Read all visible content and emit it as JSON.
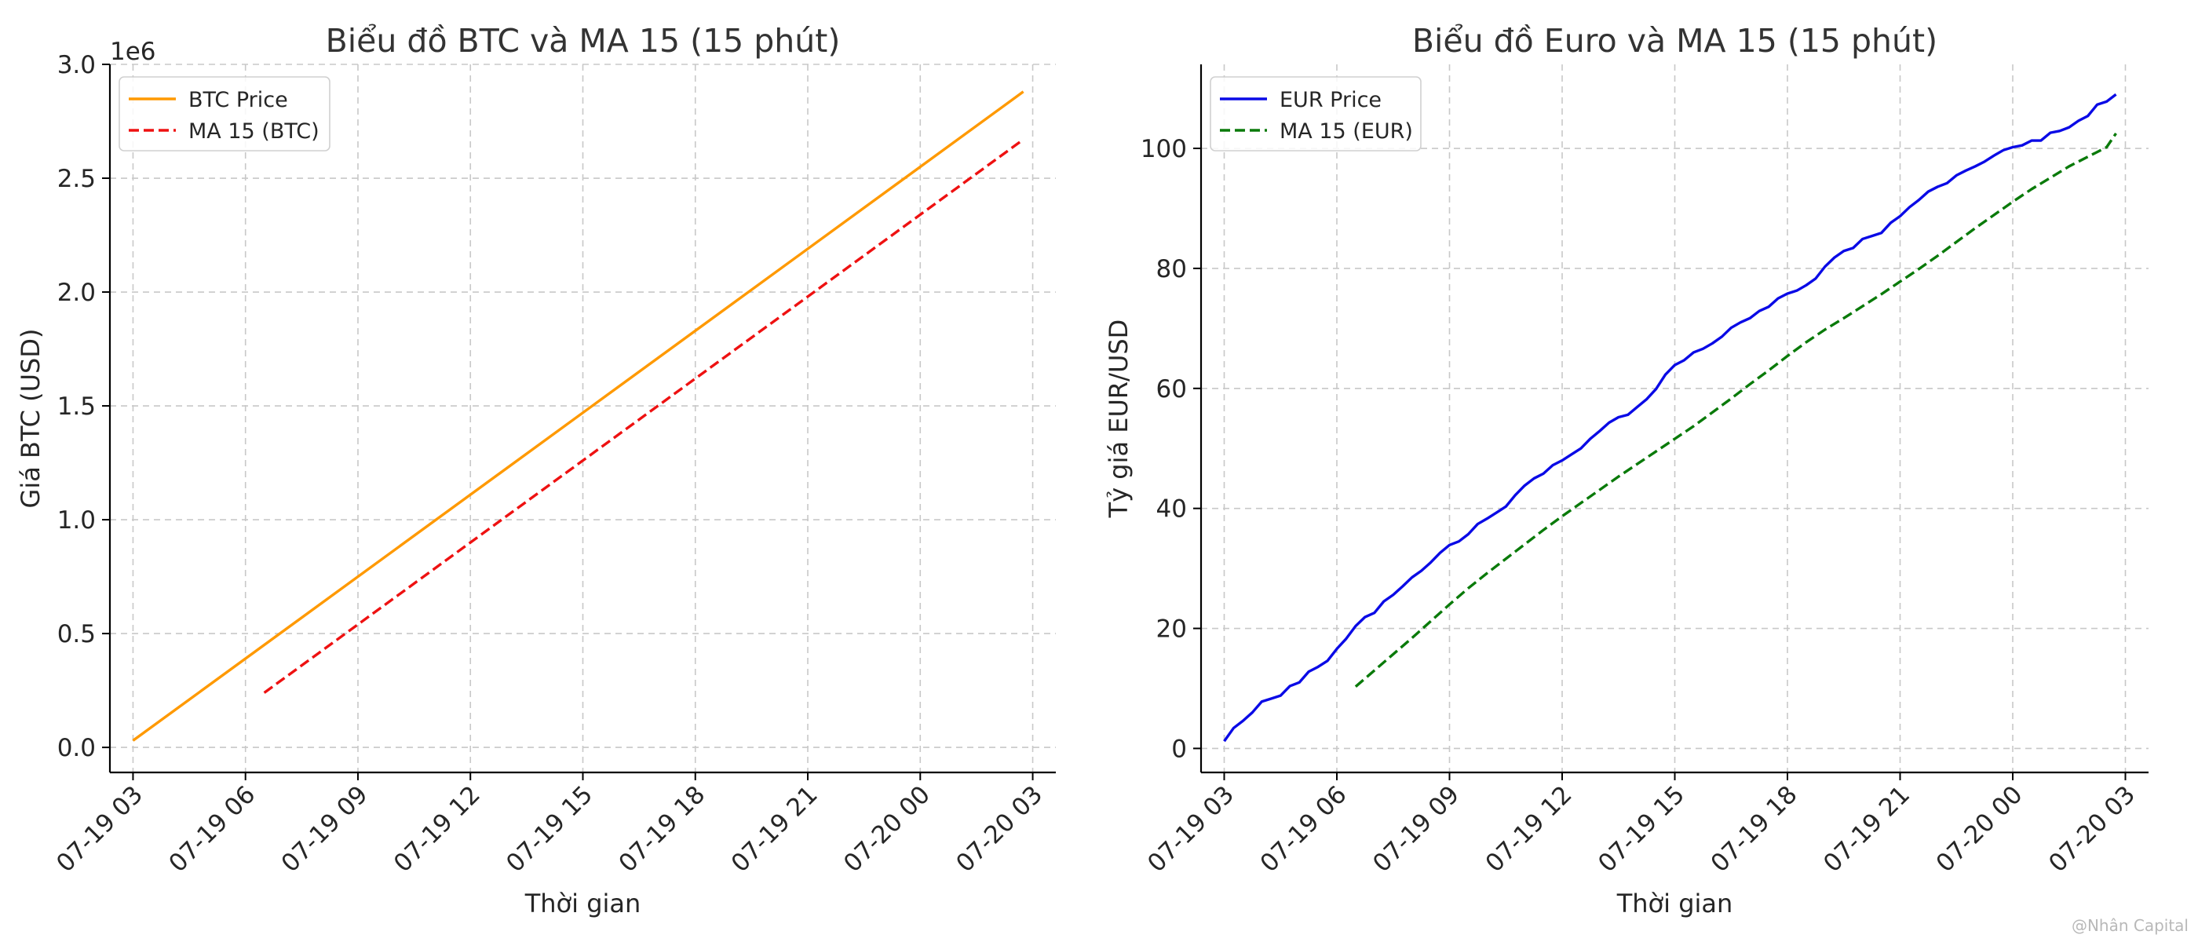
{
  "chart_data": [
    {
      "type": "line",
      "title": "Biểu đồ BTC và MA 15 (15 phút)",
      "xlabel": "Thời gian",
      "ylabel": "Giá BTC (USD)",
      "y_offset_label": "1e6",
      "y_scale": 1000000,
      "xlim": [
        "2024-07-19T02:23",
        "2024-07-20T03:37"
      ],
      "ylim": [
        -110000,
        3000000
      ],
      "x_ticks": [
        {
          "value": "2024-07-19T03:00",
          "label": "07-19 03"
        },
        {
          "value": "2024-07-19T06:00",
          "label": "07-19 06"
        },
        {
          "value": "2024-07-19T09:00",
          "label": "07-19 09"
        },
        {
          "value": "2024-07-19T12:00",
          "label": "07-19 12"
        },
        {
          "value": "2024-07-19T15:00",
          "label": "07-19 15"
        },
        {
          "value": "2024-07-19T18:00",
          "label": "07-19 18"
        },
        {
          "value": "2024-07-19T21:00",
          "label": "07-19 21"
        },
        {
          "value": "2024-07-20T00:00",
          "label": "07-20 00"
        },
        {
          "value": "2024-07-20T03:00",
          "label": "07-20 03"
        }
      ],
      "y_ticks": [
        {
          "value": 0,
          "label": "0.0"
        },
        {
          "value": 500000,
          "label": "0.5"
        },
        {
          "value": 1000000,
          "label": "1.0"
        },
        {
          "value": 1500000,
          "label": "1.5"
        },
        {
          "value": 2000000,
          "label": "2.0"
        },
        {
          "value": 2500000,
          "label": "2.5"
        },
        {
          "value": 3000000,
          "label": "3.0"
        }
      ],
      "grid": true,
      "legend_position": "top-left",
      "series": [
        {
          "name": "BTC Price",
          "color": "#ff9900",
          "dash": "solid",
          "points": [
            [
              "2024-07-19T03:00",
              30000
            ],
            [
              "2024-07-20T02:45",
              2880000
            ]
          ]
        },
        {
          "name": "MA 15 (BTC)",
          "color": "#ee1111",
          "dash": "dashed",
          "points": [
            [
              "2024-07-19T06:30",
              240000
            ],
            [
              "2024-07-20T02:45",
              2670000
            ]
          ]
        }
      ]
    },
    {
      "type": "line",
      "title": "Biểu đồ Euro và MA 15 (15 phút)",
      "xlabel": "Thời gian",
      "ylabel": "Tỷ giá EUR/USD",
      "xlim": [
        "2024-07-19T02:23",
        "2024-07-20T03:37"
      ],
      "ylim": [
        -4,
        114
      ],
      "x_ticks": [
        {
          "value": "2024-07-19T03:00",
          "label": "07-19 03"
        },
        {
          "value": "2024-07-19T06:00",
          "label": "07-19 06"
        },
        {
          "value": "2024-07-19T09:00",
          "label": "07-19 09"
        },
        {
          "value": "2024-07-19T12:00",
          "label": "07-19 12"
        },
        {
          "value": "2024-07-19T15:00",
          "label": "07-19 15"
        },
        {
          "value": "2024-07-19T18:00",
          "label": "07-19 18"
        },
        {
          "value": "2024-07-19T21:00",
          "label": "07-19 21"
        },
        {
          "value": "2024-07-20T00:00",
          "label": "07-20 00"
        },
        {
          "value": "2024-07-20T03:00",
          "label": "07-20 03"
        }
      ],
      "y_ticks": [
        {
          "value": 0,
          "label": "0"
        },
        {
          "value": 20,
          "label": "20"
        },
        {
          "value": 40,
          "label": "40"
        },
        {
          "value": 60,
          "label": "60"
        },
        {
          "value": 80,
          "label": "80"
        },
        {
          "value": 100,
          "label": "100"
        }
      ],
      "grid": true,
      "legend_position": "top-left",
      "series": [
        {
          "name": "EUR Price",
          "color": "#0a0ae6",
          "dash": "solid",
          "points": [
            [
              "2024-07-19T03:00",
              1.2
            ],
            [
              "2024-07-19T03:15",
              3.4
            ],
            [
              "2024-07-19T03:30",
              4.6
            ],
            [
              "2024-07-19T03:45",
              6.0
            ],
            [
              "2024-07-19T04:00",
              7.8
            ],
            [
              "2024-07-19T04:15",
              8.3
            ],
            [
              "2024-07-19T04:30",
              8.8
            ],
            [
              "2024-07-19T04:45",
              10.4
            ],
            [
              "2024-07-19T05:00",
              11.0
            ],
            [
              "2024-07-19T05:15",
              12.8
            ],
            [
              "2024-07-19T05:30",
              13.6
            ],
            [
              "2024-07-19T05:45",
              14.6
            ],
            [
              "2024-07-19T06:00",
              16.6
            ],
            [
              "2024-07-19T06:15",
              18.3
            ],
            [
              "2024-07-19T06:30",
              20.4
            ],
            [
              "2024-07-19T06:45",
              21.9
            ],
            [
              "2024-07-19T07:00",
              22.6
            ],
            [
              "2024-07-19T07:15",
              24.5
            ],
            [
              "2024-07-19T07:30",
              25.6
            ],
            [
              "2024-07-19T07:45",
              27.0
            ],
            [
              "2024-07-19T08:00",
              28.5
            ],
            [
              "2024-07-19T08:15",
              29.6
            ],
            [
              "2024-07-19T08:30",
              31.0
            ],
            [
              "2024-07-19T08:45",
              32.6
            ],
            [
              "2024-07-19T09:00",
              33.9
            ],
            [
              "2024-07-19T09:15",
              34.5
            ],
            [
              "2024-07-19T09:30",
              35.7
            ],
            [
              "2024-07-19T09:45",
              37.4
            ],
            [
              "2024-07-19T10:00",
              38.3
            ],
            [
              "2024-07-19T10:15",
              39.3
            ],
            [
              "2024-07-19T10:30",
              40.3
            ],
            [
              "2024-07-19T10:45",
              42.2
            ],
            [
              "2024-07-19T11:00",
              43.8
            ],
            [
              "2024-07-19T11:15",
              45.0
            ],
            [
              "2024-07-19T11:30",
              45.8
            ],
            [
              "2024-07-19T11:45",
              47.2
            ],
            [
              "2024-07-19T12:00",
              48.0
            ],
            [
              "2024-07-19T12:15",
              49.0
            ],
            [
              "2024-07-19T12:30",
              50.0
            ],
            [
              "2024-07-19T12:45",
              51.6
            ],
            [
              "2024-07-19T13:00",
              52.9
            ],
            [
              "2024-07-19T13:15",
              54.3
            ],
            [
              "2024-07-19T13:30",
              55.2
            ],
            [
              "2024-07-19T13:45",
              55.6
            ],
            [
              "2024-07-19T14:00",
              56.9
            ],
            [
              "2024-07-19T14:15",
              58.2
            ],
            [
              "2024-07-19T14:30",
              59.9
            ],
            [
              "2024-07-19T14:45",
              62.3
            ],
            [
              "2024-07-19T15:00",
              63.9
            ],
            [
              "2024-07-19T15:15",
              64.7
            ],
            [
              "2024-07-19T15:30",
              66.0
            ],
            [
              "2024-07-19T15:45",
              66.6
            ],
            [
              "2024-07-19T16:00",
              67.5
            ],
            [
              "2024-07-19T16:15",
              68.6
            ],
            [
              "2024-07-19T16:30",
              70.1
            ],
            [
              "2024-07-19T16:45",
              71.0
            ],
            [
              "2024-07-19T17:00",
              71.7
            ],
            [
              "2024-07-19T17:15",
              72.9
            ],
            [
              "2024-07-19T17:30",
              73.6
            ],
            [
              "2024-07-19T17:45",
              75.0
            ],
            [
              "2024-07-19T18:00",
              75.8
            ],
            [
              "2024-07-19T18:15",
              76.3
            ],
            [
              "2024-07-19T18:30",
              77.2
            ],
            [
              "2024-07-19T18:45",
              78.3
            ],
            [
              "2024-07-19T19:00",
              80.3
            ],
            [
              "2024-07-19T19:15",
              81.8
            ],
            [
              "2024-07-19T19:30",
              82.9
            ],
            [
              "2024-07-19T19:45",
              83.4
            ],
            [
              "2024-07-19T20:00",
              84.9
            ],
            [
              "2024-07-19T20:15",
              85.4
            ],
            [
              "2024-07-19T20:30",
              85.9
            ],
            [
              "2024-07-19T20:45",
              87.6
            ],
            [
              "2024-07-19T21:00",
              88.7
            ],
            [
              "2024-07-19T21:15",
              90.2
            ],
            [
              "2024-07-19T21:30",
              91.4
            ],
            [
              "2024-07-19T21:45",
              92.8
            ],
            [
              "2024-07-19T22:00",
              93.6
            ],
            [
              "2024-07-19T22:15",
              94.2
            ],
            [
              "2024-07-19T22:30",
              95.5
            ],
            [
              "2024-07-19T22:45",
              96.3
            ],
            [
              "2024-07-19T23:00",
              97.0
            ],
            [
              "2024-07-19T23:15",
              97.8
            ],
            [
              "2024-07-19T23:30",
              98.8
            ],
            [
              "2024-07-19T23:45",
              99.7
            ],
            [
              "2024-07-20T00:00",
              100.2
            ],
            [
              "2024-07-20T00:15",
              100.5
            ],
            [
              "2024-07-20T00:30",
              101.3
            ],
            [
              "2024-07-20T00:45",
              101.3
            ],
            [
              "2024-07-20T01:00",
              102.6
            ],
            [
              "2024-07-20T01:15",
              102.9
            ],
            [
              "2024-07-20T01:30",
              103.5
            ],
            [
              "2024-07-20T01:45",
              104.6
            ],
            [
              "2024-07-20T02:00",
              105.4
            ],
            [
              "2024-07-20T02:15",
              107.3
            ],
            [
              "2024-07-20T02:30",
              107.8
            ],
            [
              "2024-07-20T02:45",
              109.0
            ]
          ]
        },
        {
          "name": "MA 15 (EUR)",
          "color": "#0a7a0a",
          "dash": "dashed",
          "points": [
            [
              "2024-07-19T06:30",
              10.3
            ],
            [
              "2024-07-19T07:00",
              13.0
            ],
            [
              "2024-07-19T07:30",
              15.7
            ],
            [
              "2024-07-19T08:00",
              18.4
            ],
            [
              "2024-07-19T08:30",
              21.2
            ],
            [
              "2024-07-19T09:00",
              24.0
            ],
            [
              "2024-07-19T09:30",
              26.7
            ],
            [
              "2024-07-19T10:00",
              29.2
            ],
            [
              "2024-07-19T10:30",
              31.6
            ],
            [
              "2024-07-19T11:00",
              34.0
            ],
            [
              "2024-07-19T11:30",
              36.4
            ],
            [
              "2024-07-19T12:00",
              38.7
            ],
            [
              "2024-07-19T12:30",
              40.9
            ],
            [
              "2024-07-19T13:00",
              43.1
            ],
            [
              "2024-07-19T13:30",
              45.3
            ],
            [
              "2024-07-19T14:00",
              47.4
            ],
            [
              "2024-07-19T14:30",
              49.5
            ],
            [
              "2024-07-19T15:00",
              51.6
            ],
            [
              "2024-07-19T15:30",
              53.7
            ],
            [
              "2024-07-19T16:00",
              56.0
            ],
            [
              "2024-07-19T16:30",
              58.3
            ],
            [
              "2024-07-19T17:00",
              60.7
            ],
            [
              "2024-07-19T17:30",
              63.0
            ],
            [
              "2024-07-19T18:00",
              65.4
            ],
            [
              "2024-07-19T18:30",
              67.7
            ],
            [
              "2024-07-19T19:00",
              69.8
            ],
            [
              "2024-07-19T19:30",
              71.7
            ],
            [
              "2024-07-19T20:00",
              73.7
            ],
            [
              "2024-07-19T20:30",
              75.7
            ],
            [
              "2024-07-19T21:00",
              77.8
            ],
            [
              "2024-07-19T21:30",
              79.9
            ],
            [
              "2024-07-19T22:00",
              82.1
            ],
            [
              "2024-07-19T22:30",
              84.4
            ],
            [
              "2024-07-19T23:00",
              86.7
            ],
            [
              "2024-07-19T23:30",
              88.9
            ],
            [
              "2024-07-20T00:00",
              91.1
            ],
            [
              "2024-07-20T00:30",
              93.2
            ],
            [
              "2024-07-20T01:00",
              95.1
            ],
            [
              "2024-07-20T01:30",
              97.0
            ],
            [
              "2024-07-20T02:00",
              98.6
            ],
            [
              "2024-07-20T02:30",
              100.2
            ],
            [
              "2024-07-20T02:45",
              102.5
            ]
          ]
        }
      ]
    }
  ],
  "watermark": "@Nhân Capital"
}
